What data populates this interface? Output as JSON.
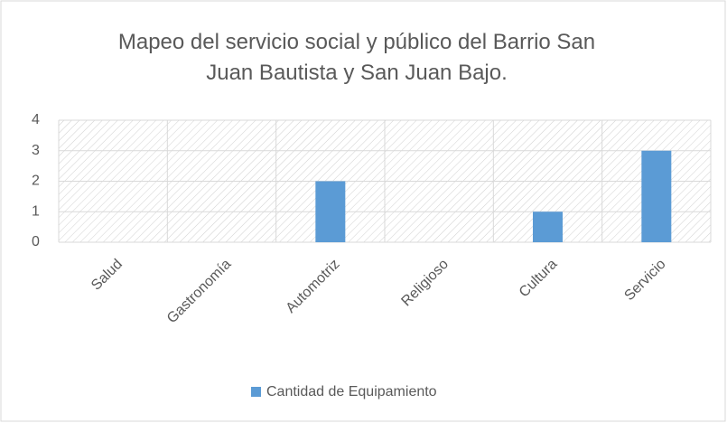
{
  "chart_data": {
    "type": "bar",
    "title": "Mapeo del servicio social y público del Barrio San Juan Bautista y San Juan Bajo.",
    "categories": [
      "Salud",
      "Gastronomía",
      "Automotriz",
      "Religioso",
      "Cultura",
      "Servicio"
    ],
    "series": [
      {
        "name": "Cantidad de Equipamiento",
        "color": "#5b9bd5",
        "values": [
          0,
          0,
          2,
          0,
          1,
          3
        ]
      }
    ],
    "ylim": [
      0,
      4
    ],
    "yticks": [
      0,
      1,
      2,
      3,
      4
    ],
    "grid": true,
    "legend": "bottom"
  }
}
